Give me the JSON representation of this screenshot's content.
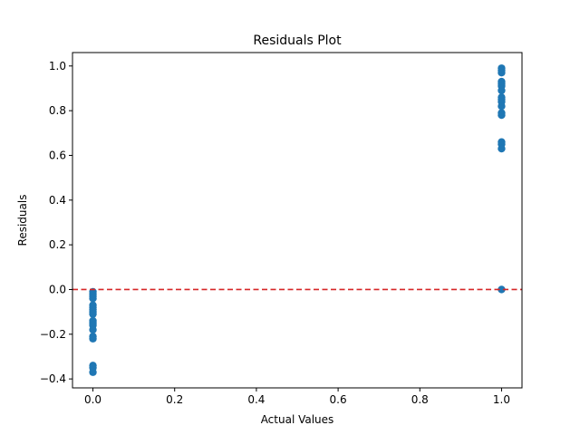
{
  "chart_data": {
    "type": "scatter",
    "title": "Residuals Plot",
    "xlabel": "Actual Values",
    "ylabel": "Residuals",
    "xlim": [
      -0.05,
      1.05
    ],
    "ylim": [
      -0.44,
      1.06
    ],
    "xticks": [
      0.0,
      0.2,
      0.4,
      0.6,
      0.8,
      1.0
    ],
    "xtick_labels": [
      "0.0",
      "0.2",
      "0.4",
      "0.6",
      "0.8",
      "1.0"
    ],
    "yticks": [
      -0.4,
      -0.2,
      0.0,
      0.2,
      0.4,
      0.6,
      0.8,
      1.0
    ],
    "ytick_labels": [
      "−0.4",
      "−0.2",
      "0.0",
      "0.2",
      "0.4",
      "0.6",
      "0.8",
      "1.0"
    ],
    "grid": false,
    "marker_color": "#1f77b4",
    "reference_line": {
      "y": 0.0,
      "color": "#d62728",
      "style": "dashed"
    },
    "points": [
      {
        "x": 0,
        "y": -0.01
      },
      {
        "x": 0,
        "y": -0.02
      },
      {
        "x": 0,
        "y": -0.03
      },
      {
        "x": 0,
        "y": -0.04
      },
      {
        "x": 0,
        "y": -0.07
      },
      {
        "x": 0,
        "y": -0.08
      },
      {
        "x": 0,
        "y": -0.09
      },
      {
        "x": 0,
        "y": -0.1
      },
      {
        "x": 0,
        "y": -0.11
      },
      {
        "x": 0,
        "y": -0.14
      },
      {
        "x": 0,
        "y": -0.15
      },
      {
        "x": 0,
        "y": -0.16
      },
      {
        "x": 0,
        "y": -0.18
      },
      {
        "x": 0,
        "y": -0.21
      },
      {
        "x": 0,
        "y": -0.22
      },
      {
        "x": 0,
        "y": -0.34
      },
      {
        "x": 0,
        "y": -0.35
      },
      {
        "x": 0,
        "y": -0.37
      },
      {
        "x": 1,
        "y": 0.99
      },
      {
        "x": 1,
        "y": 0.98
      },
      {
        "x": 1,
        "y": 0.97
      },
      {
        "x": 1,
        "y": 0.93
      },
      {
        "x": 1,
        "y": 0.92
      },
      {
        "x": 1,
        "y": 0.91
      },
      {
        "x": 1,
        "y": 0.89
      },
      {
        "x": 1,
        "y": 0.86
      },
      {
        "x": 1,
        "y": 0.85
      },
      {
        "x": 1,
        "y": 0.84
      },
      {
        "x": 1,
        "y": 0.82
      },
      {
        "x": 1,
        "y": 0.79
      },
      {
        "x": 1,
        "y": 0.78
      },
      {
        "x": 1,
        "y": 0.66
      },
      {
        "x": 1,
        "y": 0.65
      },
      {
        "x": 1,
        "y": 0.63
      },
      {
        "x": 1,
        "y": 0.0
      }
    ]
  }
}
